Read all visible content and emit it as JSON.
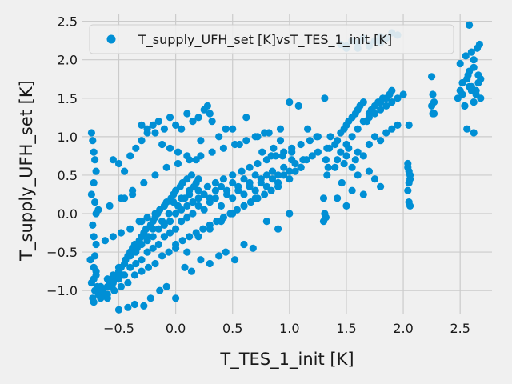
{
  "chart_data": {
    "type": "scatter",
    "xlabel": "T_TES_1_init [K]",
    "ylabel": "T_supply_UFH_set [K]",
    "xlim": [
      -0.82,
      2.78
    ],
    "ylim": [
      -1.3,
      2.6
    ],
    "xticks": [
      -0.5,
      0.0,
      0.5,
      1.0,
      1.5,
      2.0,
      2.5
    ],
    "yticks": [
      -1.0,
      -0.5,
      0.0,
      0.5,
      1.0,
      1.5,
      2.0,
      2.5
    ],
    "xtick_labels": [
      "−0.5",
      "0.0",
      "0.5",
      "1.0",
      "1.5",
      "2.0",
      "2.5"
    ],
    "ytick_labels": [
      "−1.0",
      "−0.5",
      "0.0",
      "0.5",
      "1.0",
      "1.5",
      "2.0",
      "2.5"
    ],
    "grid": true,
    "legend_position": "top-right",
    "series": [
      {
        "name": "T_supply_UFH_set [K]vsT_TES_1_init [K]",
        "color": "#008fd5",
        "x": [
          -0.75,
          -0.72,
          -0.7,
          -0.74,
          -0.71,
          -0.68,
          -0.73,
          -0.69,
          -0.72,
          -0.7,
          -0.66,
          -0.64,
          -0.62,
          -0.6,
          -0.58,
          -0.56,
          -0.54,
          -0.52,
          -0.5,
          -0.48,
          -0.46,
          -0.44,
          -0.42,
          -0.4,
          -0.38,
          -0.36,
          -0.34,
          -0.32,
          -0.3,
          -0.28,
          -0.26,
          -0.24,
          -0.22,
          -0.2,
          -0.18,
          -0.16,
          -0.14,
          -0.12,
          -0.1,
          -0.08,
          -0.06,
          -0.04,
          -0.02,
          0.0,
          0.02,
          0.04,
          0.06,
          0.08,
          0.1,
          0.12,
          0.14,
          0.16,
          0.18,
          0.2,
          -0.6,
          -0.55,
          -0.5,
          -0.45,
          -0.4,
          -0.35,
          -0.3,
          -0.25,
          -0.2,
          -0.15,
          -0.1,
          -0.05,
          0.0,
          0.05,
          0.1,
          0.15,
          0.2,
          0.25,
          0.3,
          0.35,
          0.4,
          0.45,
          0.5,
          0.55,
          0.6,
          0.65,
          0.7,
          0.75,
          0.8,
          0.85,
          0.9,
          0.95,
          1.0,
          1.05,
          1.1,
          1.15,
          1.2,
          1.25,
          -0.65,
          -0.6,
          -0.55,
          -0.5,
          -0.45,
          -0.4,
          -0.35,
          -0.3,
          -0.25,
          -0.2,
          -0.15,
          -0.1,
          -0.05,
          0.0,
          0.05,
          0.1,
          0.15,
          0.2,
          0.25,
          0.3,
          0.35,
          0.4,
          0.45,
          0.5,
          0.55,
          0.6,
          0.65,
          0.7,
          0.75,
          0.8,
          0.85,
          0.9,
          0.95,
          1.0,
          1.05,
          1.1,
          -0.7,
          -0.62,
          -0.55,
          -0.48,
          -0.4,
          -0.32,
          -0.25,
          -0.18,
          -0.1,
          -0.02,
          0.05,
          0.12,
          0.2,
          0.28,
          0.35,
          0.42,
          0.5,
          0.58,
          0.65,
          0.72,
          0.8,
          0.88,
          0.95,
          1.02,
          1.1,
          1.18,
          1.25,
          -0.72,
          -0.66,
          -0.6,
          -0.54,
          -0.48,
          -0.42,
          -0.36,
          -0.3,
          -0.24,
          -0.18,
          -0.12,
          -0.06,
          0.0,
          0.06,
          0.12,
          0.18,
          0.24,
          0.3,
          0.36,
          0.42,
          0.48,
          0.54,
          0.6,
          0.66,
          0.72,
          0.78,
          0.84,
          0.9,
          -0.68,
          -0.58,
          -0.48,
          -0.38,
          -0.28,
          -0.18,
          -0.08,
          0.02,
          0.12,
          0.22,
          0.32,
          0.42,
          0.52,
          0.62,
          0.72,
          0.82,
          0.92,
          1.02,
          1.12,
          -0.74,
          -0.73,
          -0.72,
          -0.71,
          -0.7,
          -0.72,
          -0.74,
          -0.71,
          -0.7,
          -0.73,
          -0.72,
          -0.71,
          -0.55,
          -0.5,
          -0.45,
          -0.4,
          -0.35,
          -0.3,
          -0.25,
          -0.2,
          -0.15,
          -0.1,
          -0.05,
          0.0,
          0.05,
          0.1,
          0.15,
          0.2,
          0.25,
          0.3,
          -0.5,
          -0.42,
          -0.36,
          -0.28,
          -0.22,
          -0.14,
          -0.08,
          0.0,
          0.08,
          0.14,
          0.22,
          0.3,
          0.38,
          0.44,
          0.52,
          0.6,
          0.68,
          0.76,
          0.84,
          0.92,
          1.0,
          1.08,
          1.16,
          1.24,
          -0.3,
          -0.25,
          -0.18,
          -0.12,
          -0.05,
          0.02,
          0.1,
          0.18,
          0.22,
          0.28,
          0.32,
          0.38,
          0.44,
          0.5,
          0.56,
          0.62,
          0.7,
          0.78,
          0.86,
          0.94,
          1.02,
          1.1,
          -0.45,
          -0.38,
          -0.3,
          -0.2,
          -0.1,
          0.0,
          0.1,
          0.2,
          0.3,
          0.4,
          0.5,
          0.6,
          0.7,
          0.8,
          0.9,
          1.0,
          1.3,
          1.31,
          1.32,
          1.33,
          1.34,
          1.35,
          1.36,
          1.3,
          1.31,
          1.32,
          1.33,
          1.4,
          1.42,
          1.45,
          1.48,
          1.5,
          1.52,
          1.55,
          1.58,
          1.6,
          1.62,
          1.65,
          1.68,
          1.7,
          1.72,
          1.75,
          1.78,
          1.8,
          1.82,
          1.85,
          1.88,
          1.9,
          1.4,
          1.42,
          1.45,
          1.48,
          1.5,
          1.52,
          1.55,
          1.58,
          1.6,
          1.65,
          1.7,
          1.75,
          1.8,
          1.85,
          1.9,
          1.95,
          1.45,
          1.5,
          1.55,
          1.6,
          1.65,
          1.7,
          1.75,
          1.8,
          1.85,
          1.9,
          1.95,
          1.5,
          1.6,
          1.7,
          1.8,
          1.42,
          1.46,
          1.5,
          1.55,
          1.6,
          1.65,
          1.7,
          1.75,
          1.8,
          1.5,
          1.55,
          1.6,
          1.65,
          1.7,
          1.75,
          1.8,
          1.85,
          1.9,
          1.95,
          2.0,
          2.04,
          2.05,
          2.06,
          2.04,
          2.05,
          2.06,
          2.05,
          2.04,
          2.05,
          2.06,
          2.25,
          2.26,
          2.27,
          2.25,
          2.26,
          2.27,
          2.48,
          2.5,
          2.52,
          2.54,
          2.56,
          2.58,
          2.6,
          2.62,
          2.64,
          2.66,
          2.68,
          2.5,
          2.55,
          2.6,
          2.65,
          2.52,
          2.57,
          2.62,
          2.67,
          2.54,
          2.6,
          2.66,
          2.56,
          2.62,
          2.68,
          2.58,
          2.64,
          2.58,
          2.62
        ],
        "y": [
          -0.6,
          -0.7,
          -0.8,
          -0.9,
          -1.0,
          -1.05,
          -1.1,
          -0.95,
          -0.85,
          -0.75,
          -0.95,
          -1.0,
          -1.05,
          -1.1,
          -0.9,
          -0.95,
          -0.85,
          -0.8,
          -0.75,
          -0.7,
          -0.8,
          -0.6,
          -0.55,
          -0.5,
          -0.45,
          -0.4,
          -0.45,
          -0.35,
          -0.3,
          -0.25,
          -0.2,
          -0.3,
          -0.15,
          -0.1,
          -0.05,
          0.0,
          0.05,
          -0.1,
          0.1,
          0.15,
          0.0,
          0.2,
          0.25,
          0.3,
          0.1,
          0.35,
          0.4,
          0.2,
          0.45,
          0.3,
          0.5,
          0.35,
          0.4,
          0.45,
          -0.85,
          -0.8,
          -0.7,
          -0.65,
          -0.55,
          -0.5,
          -0.4,
          -0.35,
          -0.3,
          -0.2,
          -0.15,
          -0.1,
          0.0,
          0.05,
          0.1,
          0.15,
          0.2,
          0.25,
          0.2,
          0.3,
          0.35,
          0.3,
          0.4,
          0.35,
          0.45,
          0.4,
          0.5,
          0.45,
          0.5,
          0.55,
          0.5,
          0.6,
          0.55,
          0.65,
          0.6,
          0.7,
          0.75,
          0.8,
          -1.0,
          -0.95,
          -0.9,
          -0.85,
          -0.8,
          -0.7,
          -0.65,
          -0.6,
          -0.5,
          -0.45,
          -0.4,
          -0.3,
          -0.25,
          -0.2,
          -0.1,
          -0.05,
          0.0,
          0.1,
          0.05,
          0.15,
          0.2,
          0.1,
          0.25,
          0.2,
          0.3,
          0.25,
          0.35,
          0.3,
          0.4,
          0.35,
          0.45,
          0.4,
          0.5,
          0.45,
          0.55,
          0.6,
          -0.4,
          -0.35,
          -0.3,
          -0.25,
          -0.2,
          -0.1,
          -0.05,
          0.0,
          0.1,
          0.15,
          0.2,
          0.25,
          0.3,
          0.35,
          0.4,
          0.45,
          0.5,
          0.55,
          0.6,
          0.65,
          0.7,
          0.75,
          0.8,
          0.85,
          0.9,
          0.95,
          1.0,
          -1.15,
          -1.1,
          -1.05,
          -1.0,
          -0.95,
          -0.9,
          -0.8,
          -0.75,
          -0.7,
          -0.65,
          -0.55,
          -0.5,
          -0.45,
          -0.35,
          -0.3,
          -0.25,
          -0.2,
          -0.15,
          -0.1,
          -0.05,
          0.0,
          0.05,
          0.1,
          0.15,
          0.2,
          0.25,
          0.3,
          0.35,
          0.05,
          0.1,
          0.2,
          0.3,
          0.4,
          0.5,
          0.6,
          0.65,
          0.7,
          0.75,
          0.8,
          0.85,
          0.9,
          0.95,
          1.0,
          1.05,
          1.1,
          0.8,
          0.7,
          1.05,
          0.95,
          0.8,
          0.7,
          0.55,
          0.4,
          0.25,
          0.15,
          0.0,
          -0.15,
          -0.3,
          -0.55,
          0.7,
          0.65,
          0.55,
          0.75,
          0.85,
          0.95,
          1.05,
          1.15,
          1.2,
          1.1,
          1.25,
          1.15,
          1.1,
          1.3,
          1.2,
          1.25,
          1.35,
          1.3,
          -1.25,
          -1.22,
          -1.18,
          -1.2,
          -1.1,
          -1.0,
          -0.95,
          -1.1,
          -0.7,
          -0.75,
          -0.6,
          -0.65,
          -0.55,
          -0.5,
          -0.6,
          -0.4,
          -0.45,
          0.8,
          0.75,
          0.95,
          1.45,
          1.4,
          1.1,
          1.0,
          1.15,
          1.1,
          1.05,
          0.9,
          0.85,
          0.8,
          0.75,
          0.7,
          0.95,
          1.4,
          1.2,
          1.0,
          1.1,
          1.1,
          0.9,
          1.25,
          1.0,
          1.05,
          0.85,
          0.75,
          0.7,
          0.6,
          0.2,
          0.25,
          -0.1,
          -0.2,
          -0.3,
          -0.4,
          -0.5,
          -0.3,
          -0.2,
          -0.1,
          0.0,
          0.1,
          0.2,
          -0.1,
          -0.2,
          0.0,
          0.2,
          0.0,
          -0.05,
          0.5,
          0.6,
          0.85,
          1.0,
          -0.1,
          1.5,
          0.7,
          0.85,
          0.9,
          0.95,
          1.05,
          1.1,
          1.15,
          1.2,
          1.25,
          1.3,
          1.35,
          1.4,
          1.45,
          1.2,
          1.3,
          1.35,
          1.4,
          1.45,
          1.45,
          1.5,
          1.5,
          1.55,
          1.6,
          0.6,
          0.7,
          0.8,
          0.65,
          0.75,
          0.85,
          0.6,
          0.7,
          0.8,
          0.75,
          0.9,
          1.0,
          0.95,
          1.05,
          1.1,
          1.15,
          2.2,
          2.18,
          2.25,
          2.22,
          2.28,
          2.2,
          2.25,
          2.3,
          2.28,
          2.35,
          2.32,
          2.15,
          2.15,
          2.18,
          2.22,
          0.2,
          0.4,
          0.1,
          0.3,
          0.5,
          0.25,
          0.55,
          0.45,
          0.35,
          0.9,
          1.0,
          1.1,
          1.2,
          1.25,
          1.3,
          1.35,
          1.4,
          1.45,
          1.5,
          1.55,
          0.65,
          0.55,
          0.45,
          0.3,
          0.15,
          0.1,
          1.15,
          0.6,
          0.4,
          0.5,
          1.78,
          1.55,
          1.45,
          1.4,
          1.3,
          1.3,
          1.5,
          1.6,
          1.55,
          1.4,
          1.75,
          1.85,
          1.65,
          1.45,
          1.6,
          1.7,
          1.5,
          1.95,
          2.05,
          2.1,
          2.15,
          1.7,
          1.8,
          1.9,
          2.2,
          1.4,
          1.6,
          1.8,
          1.1,
          1.05,
          1.75,
          1.65,
          1.55,
          2.45,
          2.0
        ]
      }
    ]
  }
}
